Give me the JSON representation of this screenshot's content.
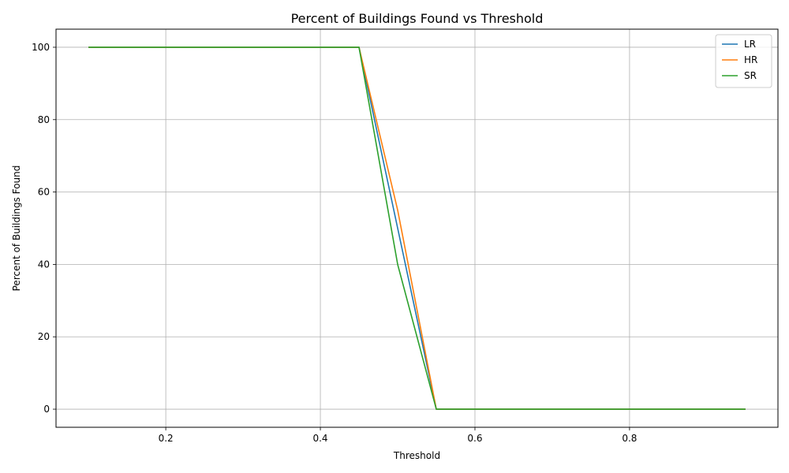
{
  "chart_data": {
    "type": "line",
    "title": "Percent of Buildings Found vs Threshold",
    "xlabel": "Threshold",
    "ylabel": "Percent of Buildings Found",
    "xlim": [
      0.058,
      0.992
    ],
    "ylim": [
      -5,
      105
    ],
    "xticks": [
      0.2,
      0.4,
      0.6,
      0.8
    ],
    "xtick_labels": [
      "0.2",
      "0.4",
      "0.6",
      "0.8"
    ],
    "yticks": [
      0,
      20,
      40,
      60,
      80,
      100
    ],
    "ytick_labels": [
      "0",
      "20",
      "40",
      "60",
      "80",
      "100"
    ],
    "grid": true,
    "legend_position": "top-right",
    "x": [
      0.1,
      0.15,
      0.2,
      0.25,
      0.3,
      0.35,
      0.4,
      0.45,
      0.5,
      0.55,
      0.6,
      0.65,
      0.7,
      0.75,
      0.8,
      0.85,
      0.9,
      0.95
    ],
    "series": [
      {
        "name": "LR",
        "color": "#1f77b4",
        "values": [
          100,
          100,
          100,
          100,
          100,
          100,
          100,
          100,
          50,
          0,
          0,
          0,
          0,
          0,
          0,
          0,
          0,
          0
        ]
      },
      {
        "name": "HR",
        "color": "#ff7f0e",
        "values": [
          100,
          100,
          100,
          100,
          100,
          100,
          100,
          100,
          55,
          0,
          0,
          0,
          0,
          0,
          0,
          0,
          0,
          0
        ]
      },
      {
        "name": "SR",
        "color": "#2ca02c",
        "values": [
          100,
          100,
          100,
          100,
          100,
          100,
          100,
          100,
          40,
          0,
          0,
          0,
          0,
          0,
          0,
          0,
          0,
          0
        ]
      }
    ]
  }
}
